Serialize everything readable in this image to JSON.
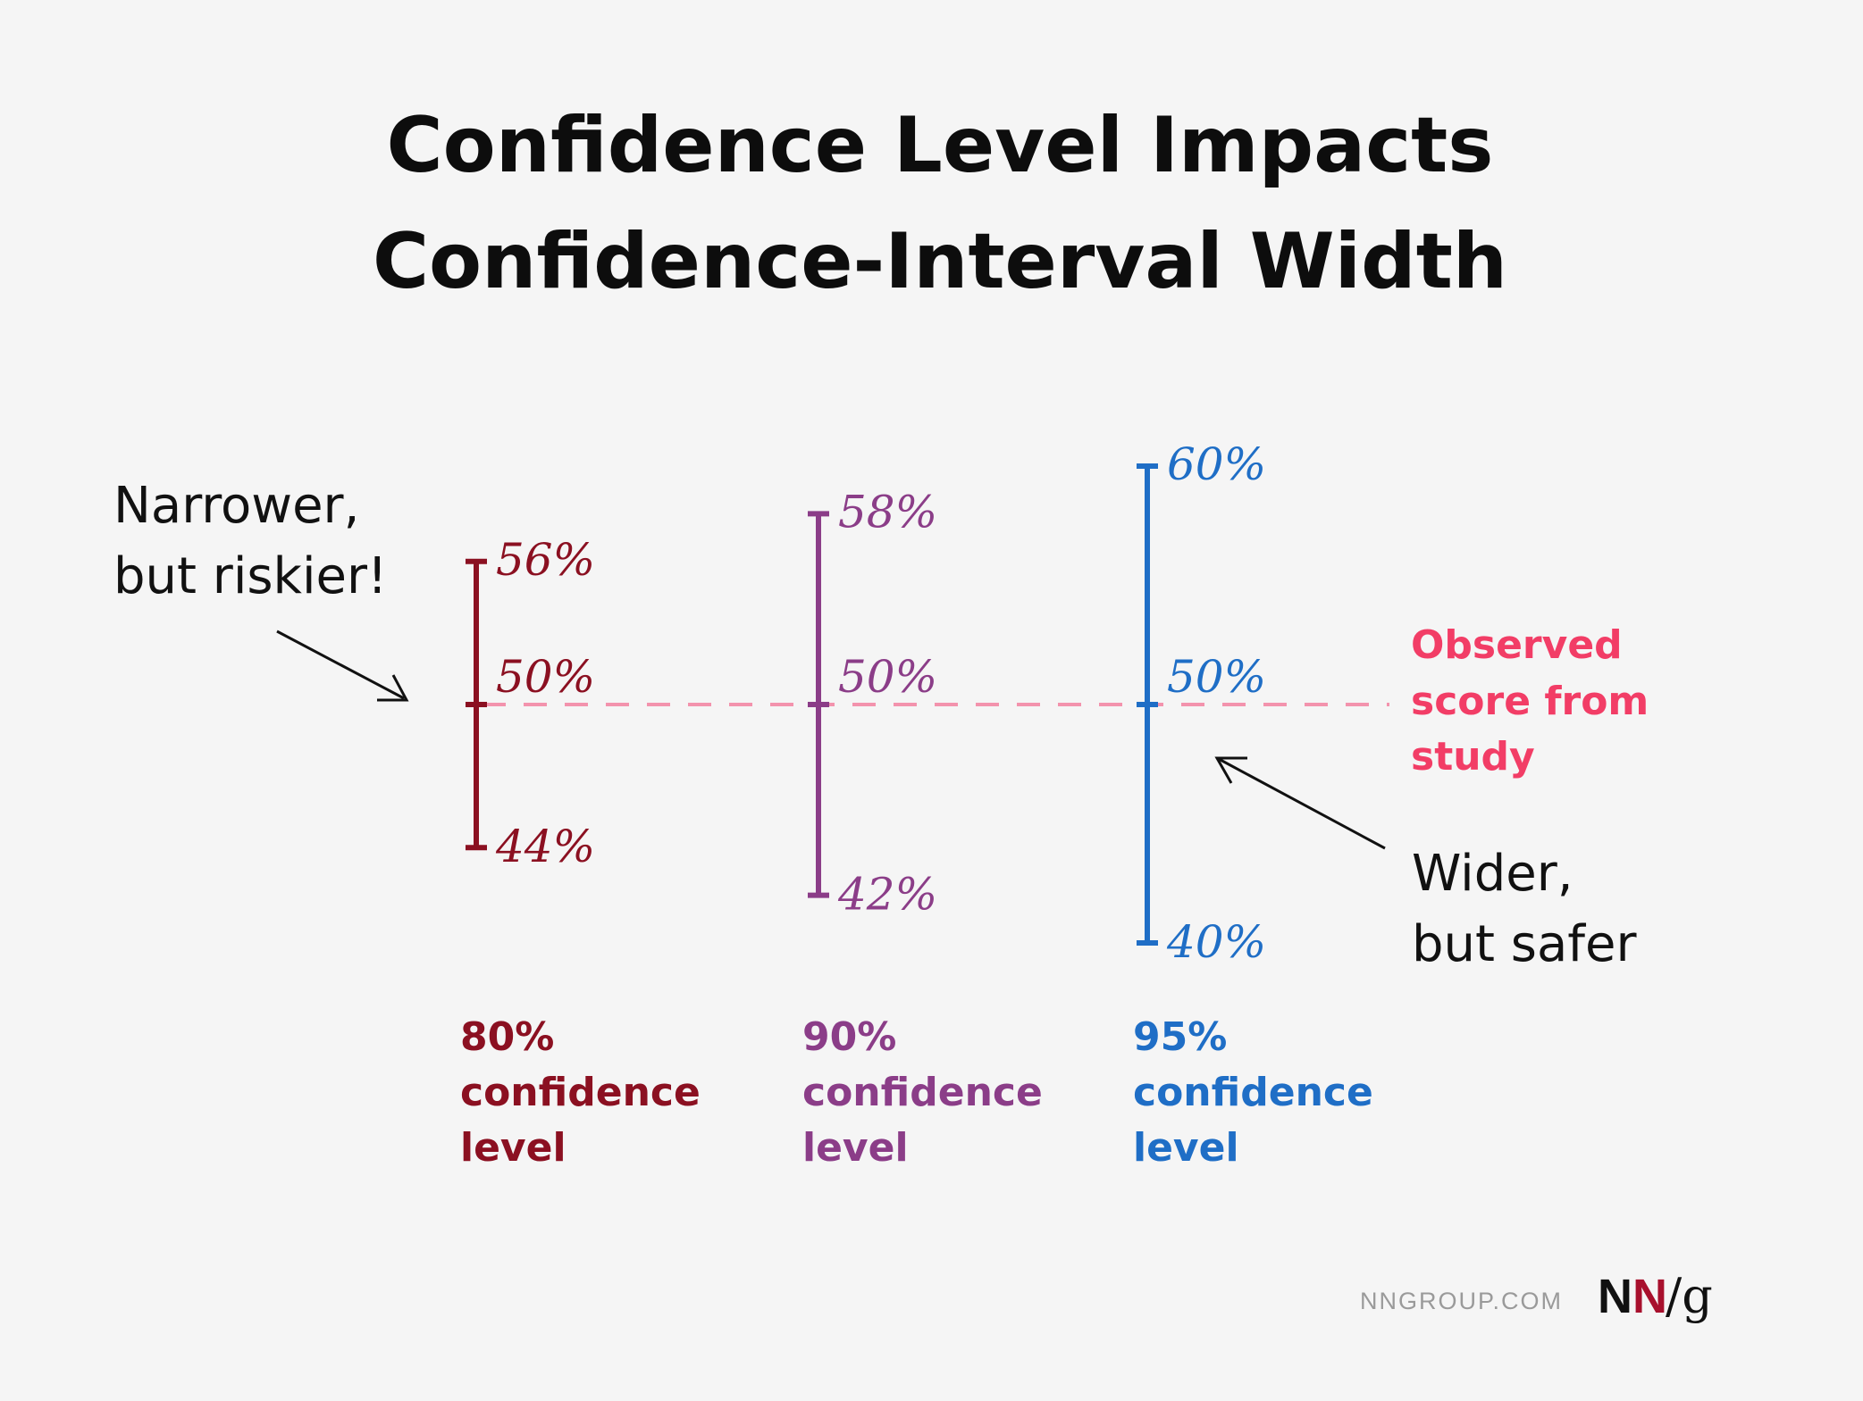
{
  "title_lines": [
    "Confidence Level Impacts",
    "Confidence-Interval Width"
  ],
  "annotations": {
    "left": [
      "Narrower,",
      "but riskier!"
    ],
    "right": [
      "Wider,",
      "but safer"
    ],
    "observed": [
      "Observed",
      "score from",
      "study"
    ]
  },
  "colors": {
    "background": "#f5f5f5",
    "ci_80": "#8b1021",
    "ci_90": "#8b3d88",
    "ci_95": "#1f6ec6",
    "observed_line": "#f393ad",
    "observed_text": "#f23d66",
    "annotation": "#111111",
    "site_text": "#9a9a9a",
    "logo_n1": "#111111",
    "logo_n2": "#a8102d"
  },
  "footer": {
    "site": "NNGROUP.COM",
    "logo_n1": "N",
    "logo_n2": "N",
    "logo_rest": "/g"
  },
  "chart_data": {
    "type": "interval",
    "title": "Confidence Level Impacts Confidence-Interval Width",
    "observed_value": 50,
    "unit": "%",
    "series": [
      {
        "name_lines": [
          "80%",
          "confidence",
          "level"
        ],
        "lower": 44,
        "estimate": 50,
        "upper": 56,
        "labels": {
          "upper": "56%",
          "estimate": "50%",
          "lower": "44%"
        }
      },
      {
        "name_lines": [
          "90%",
          "confidence",
          "level"
        ],
        "lower": 42,
        "estimate": 50,
        "upper": 58,
        "labels": {
          "upper": "58%",
          "estimate": "50%",
          "lower": "42%"
        }
      },
      {
        "name_lines": [
          "95%",
          "confidence",
          "level"
        ],
        "lower": 40,
        "estimate": 50,
        "upper": 60,
        "labels": {
          "upper": "60%",
          "estimate": "50%",
          "lower": "40%"
        }
      }
    ]
  }
}
